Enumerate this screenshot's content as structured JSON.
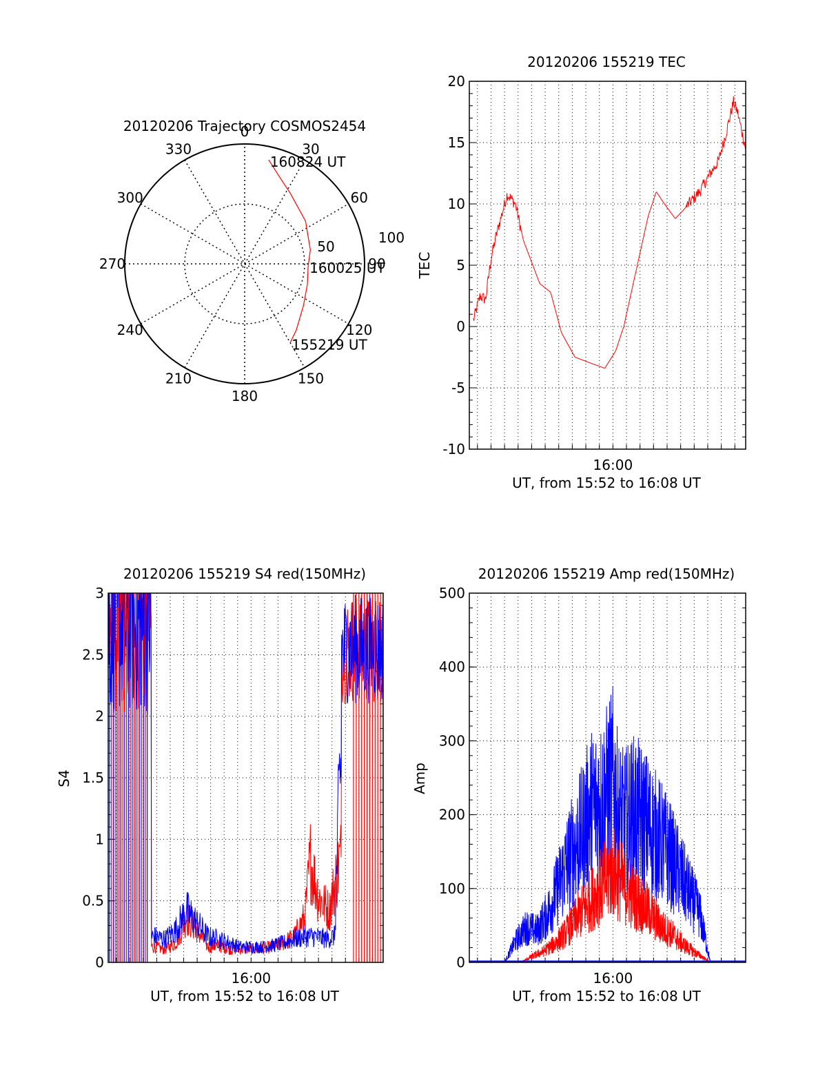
{
  "colors": {
    "red": "#ff0000",
    "blue": "#0000ff",
    "axis": "#000000",
    "grid": "#000000"
  },
  "chart_data": [
    {
      "id": "polar",
      "type": "scatter",
      "title": "20120206 Trajectory COSMOS2454",
      "angle_labels": [
        "0",
        "30",
        "60",
        "90",
        "120",
        "150",
        "180",
        "210",
        "240",
        "270",
        "300",
        "330"
      ],
      "radial_labels": [
        "50",
        "100"
      ],
      "rmax": 100,
      "grid": true,
      "series": [
        {
          "points": [
            [
              13,
              89
            ],
            [
              20,
              80
            ],
            [
              33,
              70
            ],
            [
              55,
              62
            ],
            [
              78,
              56
            ],
            [
              92,
              53
            ],
            [
              108,
              55
            ],
            [
              125,
              60
            ],
            [
              142,
              70
            ],
            [
              150,
              76
            ]
          ]
        }
      ],
      "annotations": [
        {
          "text": "160824 UT",
          "az": 13,
          "el": 89
        },
        {
          "text": "160025 UT",
          "az": 92,
          "el": 53
        },
        {
          "text": "155219 UT",
          "az": 150,
          "el": 76
        }
      ]
    },
    {
      "id": "tec",
      "type": "line",
      "title": "20120206 155219 TEC",
      "xlabel": "UT, from 15:52 to 16:08 UT",
      "ylabel": "TEC",
      "xlim": [
        -5.3,
        4.9
      ],
      "ylim": [
        -10,
        20
      ],
      "y_ticks": [
        -10,
        -5,
        0,
        5,
        10,
        15,
        20
      ],
      "x_tick_labels": [
        {
          "x": 0,
          "label": "16:00"
        }
      ],
      "grid": true,
      "series": [
        {
          "x": [
            -5.15,
            -4.9,
            -4.7,
            -4.5,
            -4.3,
            -3.9,
            -3.6,
            -3.3,
            -2.7,
            -2.3,
            -1.9,
            -1.4,
            -0.8,
            -0.3,
            0.1,
            0.4,
            0.8,
            1.3,
            1.6,
            1.9,
            2.3,
            2.6,
            2.8,
            3.2,
            3.6,
            3.9,
            4.2,
            4.45,
            4.6,
            4.75,
            4.9
          ],
          "y": [
            0.5,
            2.5,
            2.2,
            5.5,
            7.5,
            10.8,
            10,
            7,
            3.5,
            2.8,
            -0.5,
            -2.5,
            -3,
            -3.4,
            -2,
            0,
            4,
            9,
            11,
            10,
            8.8,
            9.5,
            10,
            11,
            12.5,
            13.5,
            16,
            18.3,
            17.5,
            16,
            14.5
          ]
        }
      ]
    },
    {
      "id": "s4",
      "type": "line",
      "title": "20120206 155219 S4 red(150MHz)",
      "xlabel": "UT, from 15:52 to 16:08 UT",
      "ylabel": "S4",
      "xlim": [
        -5.3,
        4.9
      ],
      "ylim": [
        0,
        3
      ],
      "y_ticks": [
        0,
        0.5,
        1,
        1.5,
        2,
        2.5,
        3
      ],
      "y_tick_labels": [
        "0",
        "0.5",
        "1",
        "1.5",
        "2",
        "2.5",
        "3"
      ],
      "x_tick_labels": [
        {
          "x": 0,
          "label": "16:00"
        }
      ],
      "grid": true,
      "series": [
        {
          "x": [
            -3.6,
            -3.2,
            -2.8,
            -2.4,
            -2,
            -1.6,
            -1.2,
            -0.8,
            -0.4,
            0,
            0.4,
            0.8,
            1.2,
            1.6,
            2.0,
            2.2,
            2.5,
            2.9,
            3.3
          ],
          "y": [
            0.12,
            0.1,
            0.15,
            0.35,
            0.25,
            0.12,
            0.13,
            0.1,
            0.1,
            0.1,
            0.11,
            0.12,
            0.15,
            0.2,
            0.35,
            0.8,
            0.5,
            0.4,
            0.8
          ]
        },
        {
          "x": [
            -3.6,
            -3.2,
            -2.8,
            -2.4,
            -2,
            -1.6,
            -1.2,
            -0.8,
            -0.4,
            0,
            0.4,
            0.8,
            1.2,
            1.6,
            2.0,
            2.4,
            2.8,
            3.1,
            3.3
          ],
          "y": [
            0.2,
            0.18,
            0.25,
            0.4,
            0.3,
            0.2,
            0.18,
            0.15,
            0.12,
            0.12,
            0.12,
            0.13,
            0.15,
            0.18,
            0.2,
            0.2,
            0.18,
            0.2,
            1.5
          ]
        }
      ]
    },
    {
      "id": "amp",
      "type": "area",
      "title": "20120206 155219 Amp red(150MHz)",
      "xlabel": "UT, from 15:52 to 16:08 UT",
      "ylabel": "Amp",
      "xlim": [
        -5.3,
        4.9
      ],
      "ylim": [
        0,
        500
      ],
      "y_ticks": [
        0,
        100,
        200,
        300,
        400,
        500
      ],
      "x_tick_labels": [
        {
          "x": 0,
          "label": "16:00"
        }
      ],
      "grid": true,
      "series": [
        {
          "x": [
            -5.3,
            -3.4,
            -3.0,
            -2.6,
            -2.2,
            -1.8,
            -1.4,
            -1.0,
            -0.6,
            -0.2,
            0,
            0.3,
            0.6,
            1.0,
            1.4,
            1.8,
            2.2,
            2.6,
            3.2,
            3.6,
            4.9
          ],
          "y": [
            0,
            0,
            8,
            15,
            25,
            40,
            60,
            80,
            100,
            120,
            130,
            115,
            100,
            85,
            70,
            50,
            40,
            25,
            10,
            0,
            0
          ]
        },
        {
          "x": [
            -5.3,
            -4.0,
            -3.6,
            -3.2,
            -2.8,
            -2.4,
            -2.0,
            -1.6,
            -1.2,
            -0.8,
            -0.4,
            0,
            0.2,
            0.4,
            0.8,
            1.2,
            1.6,
            2.0,
            2.4,
            2.8,
            3.2,
            3.6,
            4.9
          ],
          "y": [
            0,
            0,
            30,
            50,
            45,
            70,
            110,
            150,
            180,
            220,
            230,
            260,
            210,
            200,
            215,
            200,
            180,
            160,
            130,
            100,
            70,
            0,
            0
          ]
        }
      ]
    }
  ]
}
